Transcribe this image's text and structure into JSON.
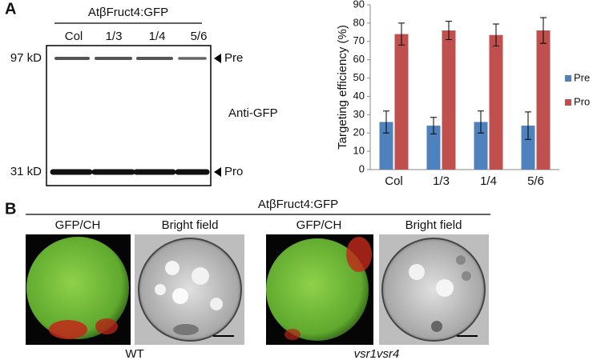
{
  "panel_a": {
    "label": "A",
    "construct": "AtβFruct4:GFP",
    "lanes": [
      "Col",
      "1/3",
      "1/4",
      "5/6"
    ],
    "markers": [
      "97 kD",
      "31 kD"
    ],
    "bands": [
      "Pre",
      "Pro"
    ],
    "antibody": "Anti-GFP"
  },
  "chart_data": {
    "type": "bar",
    "ylabel": "Targeting efficiency (%)",
    "categories": [
      "Col",
      "1/3",
      "1/4",
      "5/6"
    ],
    "series": [
      {
        "name": "Pre",
        "color": "#4f81bd",
        "values": [
          26,
          24,
          26,
          24
        ],
        "errors": [
          6,
          4.5,
          6,
          7.5
        ]
      },
      {
        "name": "Pro",
        "color": "#c0504d",
        "values": [
          74,
          76,
          73.5,
          76
        ],
        "errors": [
          6,
          5,
          6,
          7
        ]
      }
    ],
    "ylim": [
      0,
      90
    ],
    "yticks": [
      0,
      10,
      20,
      30,
      40,
      50,
      60,
      70,
      80,
      90
    ],
    "grid": false,
    "legend": "right"
  },
  "panel_b": {
    "label": "B",
    "construct": "AtβFruct4:GFP",
    "columns": [
      "GFP/CH",
      "Bright field",
      "GFP/CH",
      "Bright field"
    ],
    "genotypes": [
      "WT",
      "vsr1vsr4"
    ]
  }
}
